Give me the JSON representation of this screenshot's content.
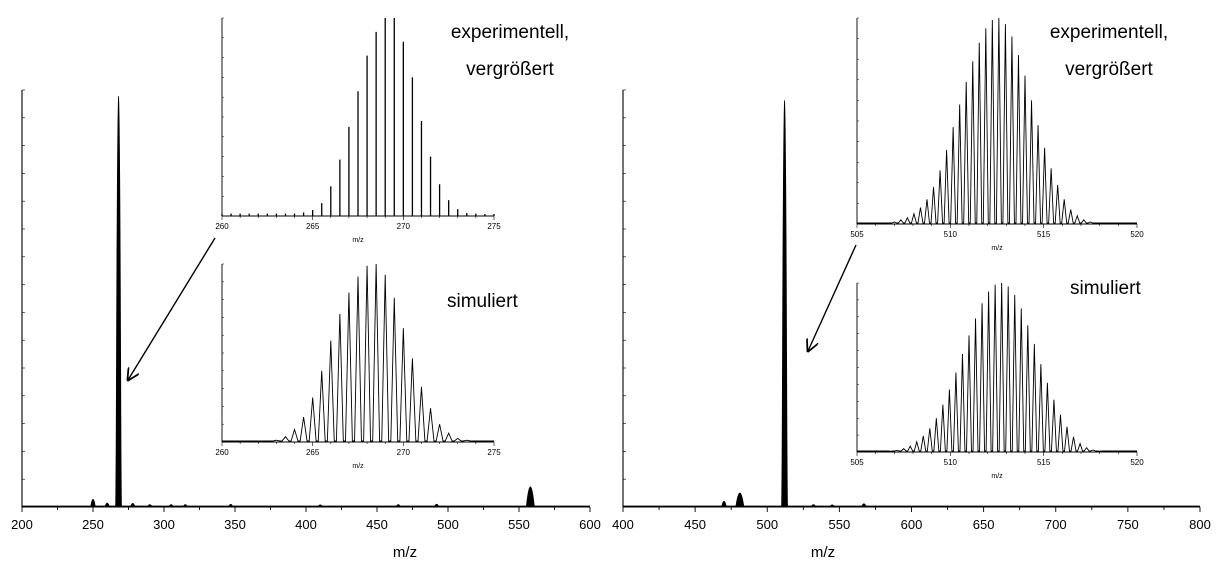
{
  "chart_data": [
    {
      "type": "line",
      "panel": "left",
      "xlabel": "m/z",
      "ylabel": "",
      "xlim": [
        200,
        600
      ],
      "xticks": [
        200,
        250,
        300,
        350,
        400,
        450,
        500,
        550,
        600
      ],
      "ylim": [
        0,
        1.0
      ],
      "series": [
        {
          "peaks": [
            [
              250,
              0.03
            ],
            [
              260,
              0.012
            ],
            [
              268,
              0.985
            ],
            [
              278,
              0.01
            ],
            [
              290,
              0.004
            ],
            [
              305,
              0.004
            ],
            [
              315,
              0.004
            ],
            [
              347,
              0.005
            ],
            [
              410,
              0.003
            ],
            [
              465,
              0.004
            ],
            [
              492,
              0.006
            ],
            [
              558,
              0.09
            ]
          ]
        }
      ],
      "annotation_arrow": {
        "points_to": [
          268,
          0.3
        ]
      },
      "insets": [
        {
          "label": "experimentell, vergrößert",
          "xlabel": "m/z",
          "xlim": [
            260,
            275
          ],
          "xticks": [
            260,
            265,
            270,
            275
          ],
          "ylim": [
            0,
            1.0
          ],
          "stick_start": 260,
          "stick_step": 0.5,
          "stick_heights": [
            0.012,
            0.012,
            0.012,
            0.012,
            0.012,
            0.012,
            0.012,
            0.012,
            0.012,
            0.018,
            0.03,
            0.065,
            0.15,
            0.285,
            0.45,
            0.63,
            0.81,
            0.93,
            1.0,
            1.0,
            0.88,
            0.7,
            0.48,
            0.3,
            0.16,
            0.08,
            0.035,
            0.015,
            0.012,
            0.01,
            0.01
          ],
          "baseline": 0.01
        },
        {
          "label": "simuliert",
          "xlabel": "m/z",
          "xlim": [
            260,
            275
          ],
          "xticks": [
            260,
            265,
            270,
            275
          ],
          "ylim": [
            0,
            1.0
          ],
          "profile_start": 263.0,
          "profile_step": 0.5,
          "profile_heights": [
            0.01,
            0.03,
            0.07,
            0.14,
            0.25,
            0.4,
            0.57,
            0.72,
            0.84,
            0.93,
            0.99,
            1.0,
            0.94,
            0.81,
            0.64,
            0.47,
            0.31,
            0.19,
            0.1,
            0.05,
            0.02,
            0.01
          ]
        }
      ]
    },
    {
      "type": "line",
      "panel": "right",
      "xlabel": "m/z",
      "ylabel": "",
      "xlim": [
        400,
        800
      ],
      "xticks": [
        400,
        450,
        500,
        550,
        600,
        650,
        700,
        750,
        800
      ],
      "ylim": [
        0,
        1.0
      ],
      "series": [
        {
          "peaks": [
            [
              470,
              0.02
            ],
            [
              481,
              0.06
            ],
            [
              512,
              0.975
            ],
            [
              532,
              0.004
            ],
            [
              545,
              0.003
            ],
            [
              567,
              0.008
            ]
          ]
        }
      ],
      "annotation_arrow": {
        "points_to": [
          514,
          0.37
        ]
      },
      "insets": [
        {
          "label": "experimentell, vergrößert",
          "xlabel": "m/z",
          "xlim": [
            505,
            520
          ],
          "xticks": [
            505,
            510,
            515,
            520
          ],
          "ylim": [
            0,
            1.0
          ],
          "profile_start": 507.0,
          "profile_step": 0.35,
          "profile_heights": [
            0.01,
            0.02,
            0.03,
            0.05,
            0.08,
            0.12,
            0.18,
            0.26,
            0.36,
            0.47,
            0.58,
            0.69,
            0.79,
            0.88,
            0.95,
            0.99,
            1.0,
            0.97,
            0.91,
            0.82,
            0.72,
            0.6,
            0.48,
            0.37,
            0.27,
            0.19,
            0.12,
            0.07,
            0.04,
            0.02,
            0.01,
            0.005
          ]
        },
        {
          "label": "simuliert",
          "xlabel": "m/z",
          "xlim": [
            505,
            520
          ],
          "xticks": [
            505,
            510,
            515,
            520
          ],
          "ylim": [
            0,
            1.0
          ],
          "profile_start": 506.8,
          "profile_step": 0.35,
          "profile_heights": [
            0.005,
            0.01,
            0.02,
            0.035,
            0.06,
            0.095,
            0.14,
            0.2,
            0.28,
            0.37,
            0.47,
            0.58,
            0.69,
            0.79,
            0.88,
            0.95,
            0.99,
            1.0,
            0.98,
            0.93,
            0.85,
            0.75,
            0.64,
            0.52,
            0.41,
            0.31,
            0.22,
            0.15,
            0.09,
            0.05,
            0.025,
            0.012,
            0.005
          ]
        }
      ]
    }
  ]
}
